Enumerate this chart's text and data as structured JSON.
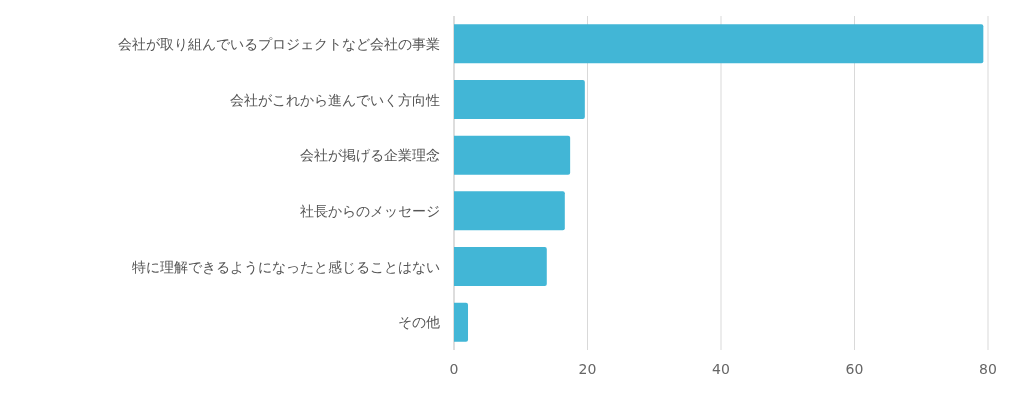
{
  "chart_data": {
    "type": "bar",
    "orientation": "horizontal",
    "categories": [
      "会社が取り組んでいるプロジェクトなど会社の事業",
      "会社がこれから進んでいく方向性",
      "会社が掲げる企業理念",
      "社長からのメッセージ",
      "特に理解できるようになったと感じることはない",
      "その他"
    ],
    "values": [
      79.3,
      19.6,
      17.4,
      16.6,
      13.9,
      2.1
    ],
    "color": "#42b6d6",
    "xlim": [
      0,
      80
    ],
    "xticks": [
      0,
      20,
      40,
      60,
      80
    ],
    "grid": "x"
  }
}
